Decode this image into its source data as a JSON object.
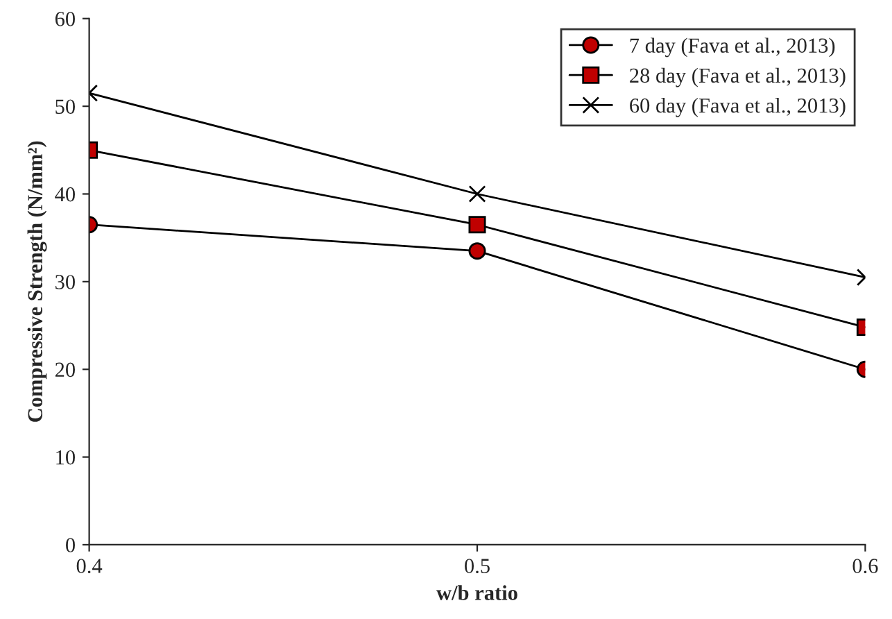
{
  "chart_data": {
    "type": "line",
    "xlabel": "w/b ratio",
    "ylabel": "Compressive Strength (N/mm²)",
    "x": [
      0.4,
      0.5,
      0.6
    ],
    "xlim": [
      0.4,
      0.6
    ],
    "xticks": [
      0.4,
      0.5,
      0.6
    ],
    "ylim": [
      0,
      60
    ],
    "yticks": [
      0,
      10,
      20,
      30,
      40,
      50,
      60
    ],
    "grid": false,
    "legend": "top right",
    "series": [
      {
        "name": "7 day (Fava et al., 2013)",
        "color": "#c00000",
        "marker": "circle",
        "values": [
          36.5,
          33.5,
          20
        ]
      },
      {
        "name": "28 day (Fava et al., 2013)",
        "color": "#c00000",
        "marker": "square",
        "values": [
          45,
          36.5,
          24.8
        ]
      },
      {
        "name": "60 day (Fava et al., 2013)",
        "color": "#000000",
        "marker": "cross",
        "values": [
          51.5,
          40,
          30.5
        ]
      }
    ]
  }
}
